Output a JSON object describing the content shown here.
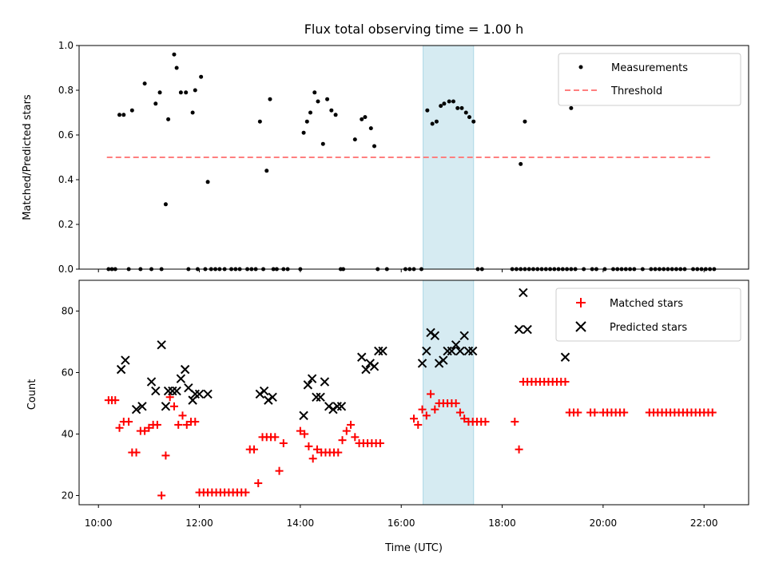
{
  "title": "Flux total observing time = 1.00 h",
  "highlight": {
    "start": "16:26",
    "end": "17:26",
    "color": "#add8e6"
  },
  "chart_data": [
    {
      "type": "scatter",
      "ylabel": "Matched/Predicted stars",
      "ylim": [
        0,
        1.0
      ],
      "yticks": [
        "0.0",
        "0.2",
        "0.4",
        "0.6",
        "0.8",
        "1.0"
      ],
      "grid": false,
      "legend_position": "top-right",
      "threshold": {
        "name": "Threshold",
        "y": 0.5,
        "x_start": "10:10",
        "x_end": "22:10",
        "color": "#ff7f7f"
      },
      "series": [
        {
          "name": "Measurements",
          "color": "#000000",
          "x": [
            "10:12",
            "10:16",
            "10:20",
            "10:25",
            "10:30",
            "10:36",
            "10:40",
            "10:50",
            "10:55",
            "11:03",
            "11:08",
            "11:13",
            "11:15",
            "11:20",
            "11:23",
            "11:30",
            "11:33",
            "11:38",
            "11:44",
            "11:47",
            "11:52",
            "11:55",
            "11:58",
            "12:02",
            "12:07",
            "12:10",
            "12:14",
            "12:19",
            "12:24",
            "12:30",
            "12:38",
            "12:43",
            "12:48",
            "12:57",
            "13:02",
            "13:07",
            "13:12",
            "13:16",
            "13:20",
            "13:24",
            "13:28",
            "13:32",
            "13:40",
            "13:45",
            "14:00",
            "14:04",
            "14:08",
            "14:12",
            "14:17",
            "14:21",
            "14:27",
            "14:32",
            "14:37",
            "14:42",
            "14:48",
            "14:51",
            "15:05",
            "15:13",
            "15:17",
            "15:24",
            "15:28",
            "15:32",
            "15:43",
            "16:05",
            "16:10",
            "16:15",
            "16:24",
            "16:31",
            "16:37",
            "16:42",
            "16:47",
            "16:51",
            "16:57",
            "17:02",
            "17:07",
            "17:12",
            "17:17",
            "17:21",
            "17:26",
            "17:31",
            "17:36",
            "18:12",
            "18:17",
            "18:22",
            "18:27",
            "18:32",
            "18:37",
            "18:42",
            "18:47",
            "18:52",
            "18:57",
            "19:02",
            "19:07",
            "19:12",
            "19:17",
            "19:22",
            "19:27",
            "19:37",
            "19:47",
            "19:52",
            "20:02",
            "20:12",
            "20:17",
            "20:22",
            "20:27",
            "20:32",
            "20:37",
            "20:47",
            "20:57",
            "21:02",
            "21:07",
            "21:12",
            "21:17",
            "21:22",
            "21:27",
            "21:32",
            "21:37",
            "21:47",
            "21:52",
            "21:57",
            "22:02",
            "22:07",
            "22:12"
          ],
          "y": [
            0,
            0,
            0,
            0.69,
            0.69,
            0,
            0.71,
            0,
            0.83,
            0,
            0.74,
            0.79,
            0,
            0.29,
            0.67,
            0.96,
            0.9,
            0.79,
            0.79,
            0,
            0.7,
            0.8,
            0,
            0.86,
            0,
            0.39,
            0,
            0,
            0,
            0,
            0,
            0,
            0,
            0,
            0,
            0,
            0.66,
            0,
            0.44,
            0.76,
            0,
            0,
            0,
            0,
            0,
            0.61,
            0.66,
            0.7,
            0.79,
            0.75,
            0.56,
            0.76,
            0.71,
            0.69,
            0,
            0,
            0.58,
            0.67,
            0.68,
            0.63,
            0.55,
            0,
            0,
            0,
            0,
            0,
            0,
            0.71,
            0.65,
            0.66,
            0.73,
            0.74,
            0.75,
            0.75,
            0.72,
            0.72,
            0.7,
            0.68,
            0.66,
            0,
            0,
            0,
            0,
            0,
            0,
            0,
            0,
            0,
            0,
            0,
            0,
            0,
            0,
            0,
            0,
            0,
            0,
            0,
            0,
            0,
            0,
            0,
            0,
            0,
            0,
            0,
            0,
            0,
            0,
            0,
            0,
            0,
            0,
            0,
            0,
            0,
            0,
            0,
            0,
            0,
            0,
            0,
            0
          ],
          "extra_points": {
            "x": [
              "18:22",
              "18:27",
              "19:22"
            ],
            "y": [
              0.47,
              0.66,
              0.72
            ]
          }
        }
      ]
    },
    {
      "type": "scatter",
      "xlabel": "Time (UTC)",
      "ylabel": "Count",
      "ylim": [
        17,
        90
      ],
      "yticks": [
        "20",
        "40",
        "60",
        "80"
      ],
      "xlim": [
        "09:37",
        "22:53"
      ],
      "xticks": [
        "10:00",
        "12:00",
        "14:00",
        "16:00",
        "18:00",
        "20:00",
        "22:00"
      ],
      "grid": false,
      "legend_position": "top-right",
      "series": [
        {
          "name": "Matched stars",
          "marker": "+",
          "color": "#ff0000",
          "x": [
            "10:12",
            "10:16",
            "10:20",
            "10:25",
            "10:30",
            "10:36",
            "10:40",
            "10:45",
            "10:50",
            "10:55",
            "11:00",
            "11:05",
            "11:10",
            "11:15",
            "11:20",
            "11:25",
            "11:30",
            "11:35",
            "11:40",
            "11:45",
            "11:50",
            "11:55",
            "12:00",
            "12:05",
            "12:10",
            "12:15",
            "12:20",
            "12:25",
            "12:30",
            "12:35",
            "12:40",
            "12:45",
            "12:50",
            "12:55",
            "13:00",
            "13:05",
            "13:10",
            "13:15",
            "13:20",
            "13:25",
            "13:30",
            "13:35",
            "13:40",
            "14:00",
            "14:05",
            "14:10",
            "14:15",
            "14:20",
            "14:25",
            "14:30",
            "14:35",
            "14:40",
            "14:45",
            "14:50",
            "14:55",
            "15:00",
            "15:05",
            "15:10",
            "15:15",
            "15:20",
            "15:25",
            "15:30",
            "15:35",
            "16:15",
            "16:20",
            "16:25",
            "16:30",
            "16:35",
            "16:40",
            "16:45",
            "16:50",
            "16:55",
            "17:00",
            "17:05",
            "17:10",
            "17:15",
            "17:20",
            "17:25",
            "17:30",
            "17:35",
            "17:40",
            "18:15",
            "18:20",
            "18:25",
            "18:30",
            "18:35",
            "18:40",
            "18:45",
            "18:50",
            "18:55",
            "19:00",
            "19:05",
            "19:10",
            "19:15",
            "19:20",
            "19:25",
            "19:30",
            "19:45",
            "19:50",
            "20:00",
            "20:05",
            "20:10",
            "20:15",
            "20:20",
            "20:25",
            "20:55",
            "21:00",
            "21:05",
            "21:10",
            "21:15",
            "21:20",
            "21:25",
            "21:30",
            "21:35",
            "21:40",
            "21:45",
            "21:50",
            "21:55",
            "22:00",
            "22:05",
            "22:10"
          ],
          "y": [
            51,
            51,
            51,
            42,
            44,
            44,
            34,
            34,
            41,
            41,
            42,
            43,
            43,
            20,
            33,
            52,
            49,
            43,
            46,
            43,
            44,
            44,
            21,
            21,
            21,
            21,
            21,
            21,
            21,
            21,
            21,
            21,
            21,
            21,
            35,
            35,
            24,
            39,
            39,
            39,
            39,
            28,
            37,
            41,
            40,
            36,
            32,
            35,
            34,
            34,
            34,
            34,
            34,
            38,
            41,
            43,
            39,
            37,
            37,
            37,
            37,
            37,
            37,
            45,
            43,
            48,
            46,
            53,
            48,
            50,
            50,
            50,
            50,
            50,
            47,
            45,
            44,
            44,
            44,
            44,
            44,
            44,
            35,
            57,
            57,
            57,
            57,
            57,
            57,
            57,
            57,
            57,
            57,
            57,
            47,
            47,
            47,
            47,
            47,
            47,
            47,
            47,
            47,
            47,
            47,
            47,
            47,
            47,
            47,
            47,
            47,
            47,
            47,
            47,
            47,
            47,
            47,
            47,
            47,
            47,
            47
          ]
        },
        {
          "name": "Predicted stars",
          "marker": "x",
          "color": "#000000",
          "x": [
            "10:27",
            "10:32",
            "10:45",
            "10:52",
            "11:03",
            "11:08",
            "11:15",
            "11:20",
            "11:23",
            "11:28",
            "11:33",
            "11:38",
            "11:43",
            "11:47",
            "11:52",
            "11:55",
            "12:00",
            "12:10",
            "13:12",
            "13:17",
            "13:22",
            "13:27",
            "14:04",
            "14:09",
            "14:14",
            "14:19",
            "14:24",
            "14:29",
            "14:34",
            "14:39",
            "14:44",
            "14:49",
            "15:13",
            "15:18",
            "15:23",
            "15:28",
            "15:33",
            "15:38",
            "16:25",
            "16:30",
            "16:35",
            "16:40",
            "16:45",
            "16:50",
            "16:55",
            "17:00",
            "17:05",
            "17:10",
            "17:15",
            "17:20",
            "17:25",
            "18:20",
            "18:25",
            "18:30",
            "19:15"
          ],
          "y": [
            61,
            64,
            48,
            49,
            57,
            54,
            69,
            49,
            54,
            54,
            54,
            58,
            61,
            55,
            51,
            53,
            53,
            53,
            53,
            54,
            51,
            52,
            46,
            56,
            58,
            52,
            52,
            57,
            49,
            48,
            49,
            49,
            65,
            61,
            63,
            62,
            67,
            67,
            63,
            67,
            73,
            72,
            63,
            64,
            67,
            67,
            69,
            67,
            72,
            67,
            67,
            74,
            86,
            74,
            65
          ]
        }
      ]
    }
  ]
}
